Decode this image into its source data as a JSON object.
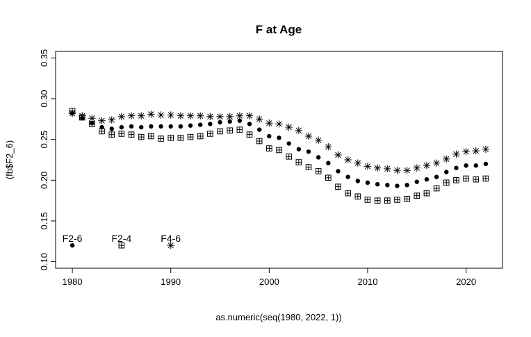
{
  "chart_data": {
    "type": "scatter",
    "title": "F at Age",
    "xlabel": "as.numeric(seq(1980, 2022, 1))",
    "ylabel": "(fb$F2_6)",
    "xlim": [
      1978.3,
      2023.7
    ],
    "ylim": [
      0.092,
      0.358
    ],
    "x_ticks": [
      1980,
      1990,
      2000,
      2010,
      2020
    ],
    "y_ticks": [
      0.1,
      0.15,
      0.2,
      0.25,
      0.3,
      0.35
    ],
    "x_tick_labels": [
      "1980",
      "1990",
      "2000",
      "2010",
      "2020"
    ],
    "y_tick_labels": [
      "0.10",
      "0.15",
      "0.20",
      "0.25",
      "0.30",
      "0.35"
    ],
    "grid": false,
    "x": [
      1980,
      1981,
      1982,
      1983,
      1984,
      1985,
      1986,
      1987,
      1988,
      1989,
      1990,
      1991,
      1992,
      1993,
      1994,
      1995,
      1996,
      1997,
      1998,
      1999,
      2000,
      2001,
      2002,
      2003,
      2004,
      2005,
      2006,
      2007,
      2008,
      2009,
      2010,
      2011,
      2012,
      2013,
      2014,
      2015,
      2016,
      2017,
      2018,
      2019,
      2020,
      2021,
      2022
    ],
    "series": [
      {
        "name": "F2-6",
        "marker": "dot",
        "values": [
          0.282,
          0.276,
          0.27,
          0.265,
          0.263,
          0.265,
          0.266,
          0.265,
          0.266,
          0.266,
          0.266,
          0.266,
          0.267,
          0.268,
          0.269,
          0.271,
          0.272,
          0.273,
          0.269,
          0.262,
          0.254,
          0.252,
          0.245,
          0.238,
          0.235,
          0.228,
          0.221,
          0.211,
          0.204,
          0.199,
          0.197,
          0.195,
          0.194,
          0.193,
          0.194,
          0.198,
          0.201,
          0.204,
          0.21,
          0.215,
          0.218,
          0.218,
          0.22
        ]
      },
      {
        "name": "F2-4",
        "marker": "boxplus",
        "values": [
          0.285,
          0.277,
          0.269,
          0.26,
          0.256,
          0.257,
          0.256,
          0.253,
          0.254,
          0.251,
          0.252,
          0.252,
          0.253,
          0.254,
          0.257,
          0.26,
          0.261,
          0.262,
          0.256,
          0.248,
          0.239,
          0.237,
          0.229,
          0.222,
          0.216,
          0.211,
          0.203,
          0.192,
          0.184,
          0.18,
          0.176,
          0.175,
          0.175,
          0.176,
          0.177,
          0.181,
          0.184,
          0.19,
          0.197,
          0.2,
          0.202,
          0.201,
          0.202
        ]
      },
      {
        "name": "F4-6",
        "marker": "star",
        "values": [
          0.282,
          0.279,
          0.276,
          0.273,
          0.274,
          0.278,
          0.279,
          0.279,
          0.281,
          0.28,
          0.28,
          0.279,
          0.279,
          0.279,
          0.278,
          0.278,
          0.278,
          0.279,
          0.279,
          0.275,
          0.27,
          0.269,
          0.265,
          0.261,
          0.254,
          0.249,
          0.241,
          0.231,
          0.225,
          0.221,
          0.217,
          0.215,
          0.214,
          0.212,
          0.212,
          0.215,
          0.218,
          0.221,
          0.226,
          0.232,
          0.235,
          0.236,
          0.238
        ]
      }
    ],
    "legend": [
      {
        "label": "F2-6",
        "marker": "dot",
        "x": 1980,
        "y": 0.12
      },
      {
        "label": "F2-4",
        "marker": "boxplus",
        "x": 1985,
        "y": 0.12
      },
      {
        "label": "F4-6",
        "marker": "star",
        "x": 1990,
        "y": 0.12
      }
    ]
  }
}
